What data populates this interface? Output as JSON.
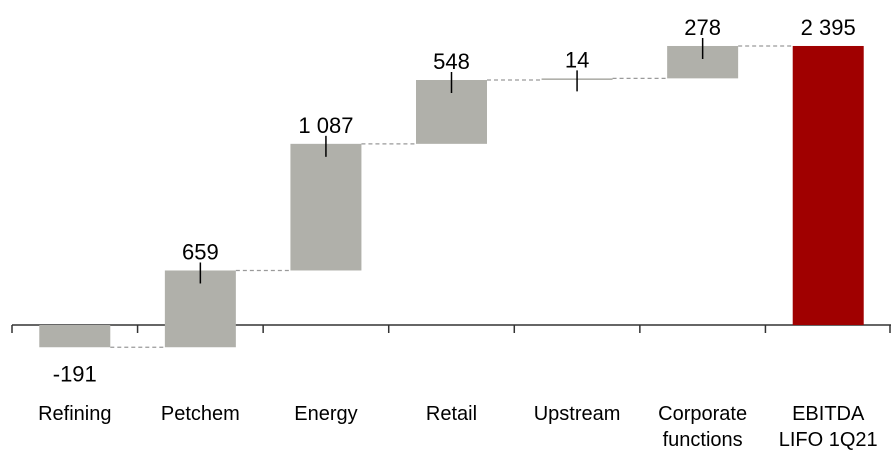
{
  "chart_data": {
    "type": "waterfall",
    "categories": [
      [
        "Refining"
      ],
      [
        "Petchem"
      ],
      [
        "Energy"
      ],
      [
        "Retail"
      ],
      [
        "Upstream"
      ],
      [
        "Corporate",
        "functions"
      ],
      [
        "EBITDA",
        "LIFO 1Q21"
      ]
    ],
    "values": [
      -191,
      659,
      1087,
      548,
      14,
      278,
      2395
    ],
    "value_labels": [
      "-191",
      "659",
      "1 087",
      "548",
      "14",
      "278",
      "2 395"
    ],
    "total_index": 6,
    "ylim": [
      -191,
      2395
    ],
    "grid": false,
    "legend": "none",
    "colors": {
      "bar": "#b0b0aa",
      "total": "#a00000",
      "connector": "#9a9a9a",
      "axis": "#333333"
    }
  }
}
